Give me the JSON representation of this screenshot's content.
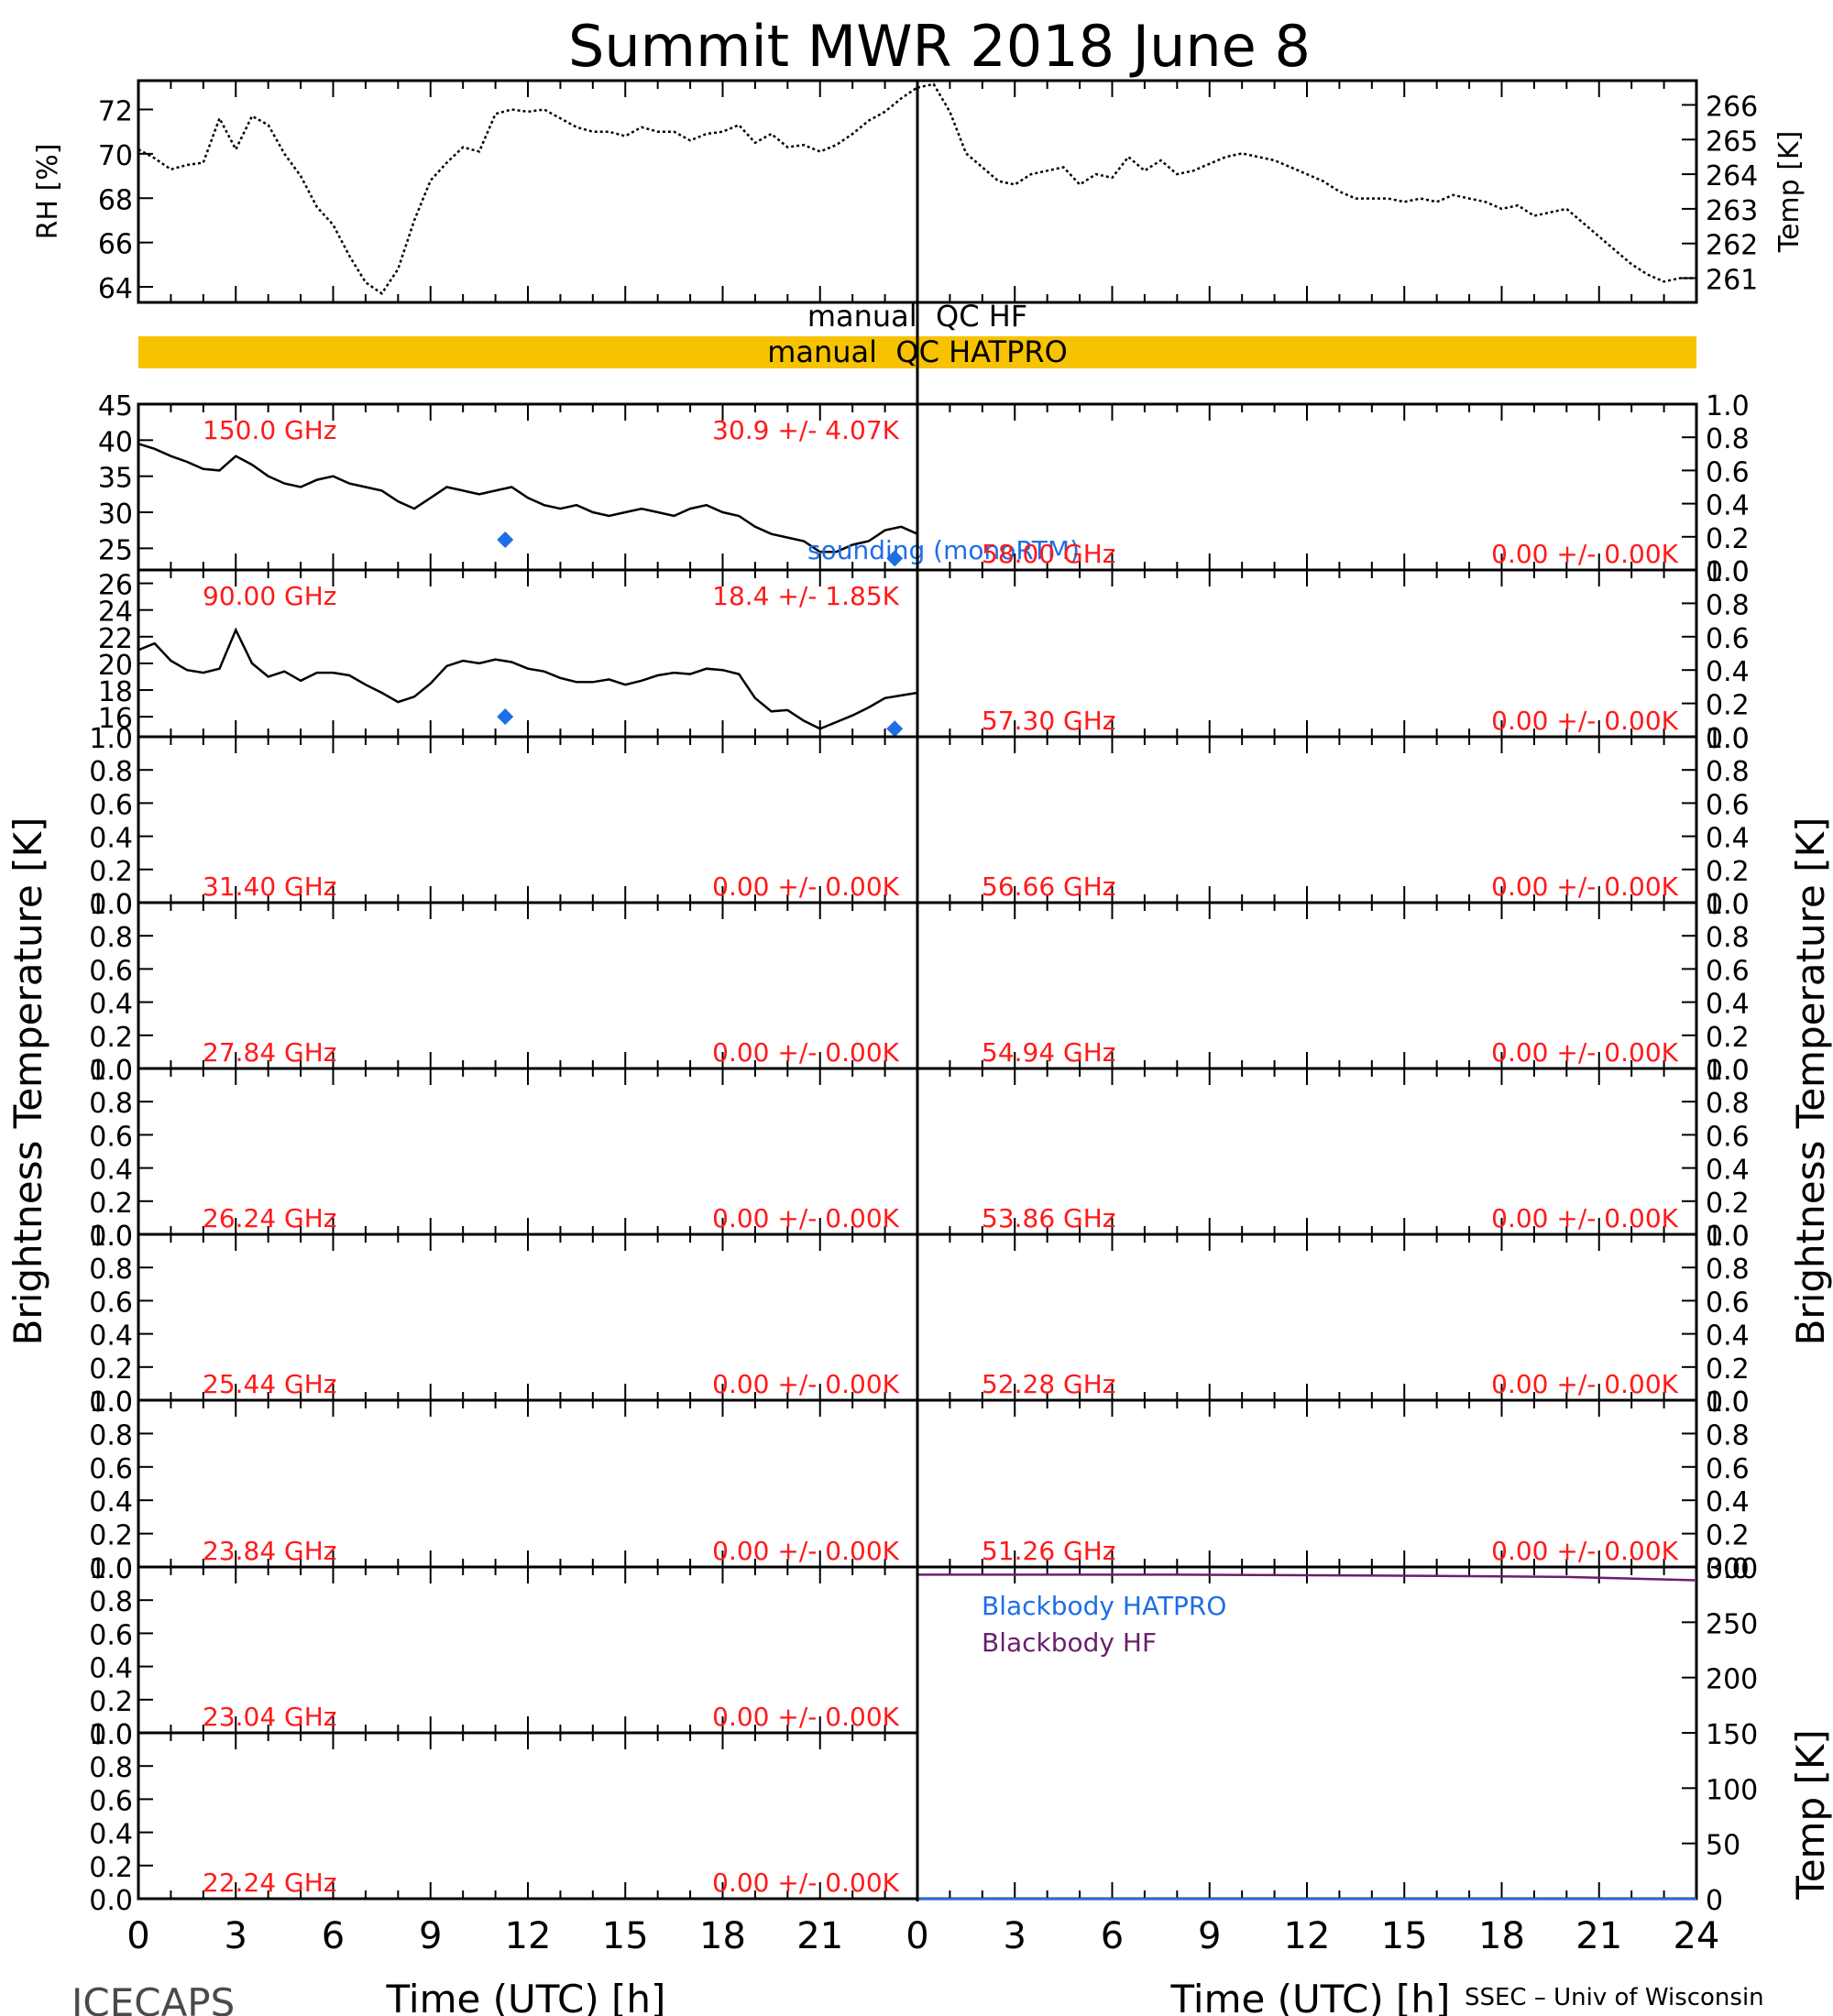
{
  "title": "Summit MWR 2018 June  8",
  "footer": {
    "left": "ICECAPS",
    "right": "SSEC – Univ of Wisconsin"
  },
  "qc": {
    "hf_label": "manual  QC HF",
    "hatpro_label": "manual  QC HATPRO",
    "hatpro_flag_color": "#F7C200"
  },
  "colors": {
    "data": "#000000",
    "freq_label": "#FF1A1A",
    "sounding": "#1E6EE6",
    "bb_hatpro": "#1E6EE6",
    "bb_hf": "#6B1F6B"
  },
  "chart_data": [
    {
      "type": "line",
      "panel": "met-rh",
      "ylabel": "RH [%]",
      "ylim": [
        63.3,
        73.3
      ],
      "yticks": [
        "64",
        "66",
        "68",
        "70",
        "72"
      ],
      "x": [
        0.0,
        0.5,
        1.0,
        1.5,
        2.0,
        2.5,
        3.0,
        3.5,
        4.0,
        4.5,
        5.0,
        5.5,
        6.0,
        6.5,
        7.0,
        7.5,
        8.0,
        8.5,
        9.0,
        9.5,
        10.0,
        10.5,
        11.0,
        11.5,
        12.0,
        12.5,
        13.0,
        13.5,
        14.0,
        14.5,
        15.0,
        15.5,
        16.0,
        16.5,
        17.0,
        17.5,
        18.0,
        18.5,
        19.0,
        19.5,
        20.0,
        20.5,
        21.0,
        21.5,
        22.0,
        22.5,
        23.0,
        23.5,
        24.0
      ],
      "y": [
        70.2,
        69.8,
        69.3,
        69.5,
        69.6,
        71.6,
        70.2,
        71.7,
        71.3,
        70.0,
        69.0,
        67.6,
        66.8,
        65.4,
        64.2,
        63.7,
        64.8,
        67.0,
        68.8,
        69.6,
        70.3,
        70.1,
        71.8,
        72.0,
        71.9,
        72.0,
        71.6,
        71.2,
        71.0,
        71.0,
        70.8,
        71.2,
        71.0,
        71.0,
        70.6,
        70.9,
        71.0,
        71.3,
        70.5,
        70.9,
        70.3,
        70.4,
        70.1,
        70.4,
        70.9,
        71.5,
        71.9,
        72.5,
        73.0
      ],
      "xlim": [
        0,
        24
      ]
    },
    {
      "type": "line",
      "panel": "met-temp",
      "ylabel": "Temp [K]",
      "ylim": [
        260.3,
        266.7
      ],
      "yticks": [
        "261",
        "262",
        "263",
        "264",
        "265",
        "266"
      ],
      "x": [
        0.0,
        0.5,
        1.0,
        1.5,
        2.0,
        2.5,
        3.0,
        3.5,
        4.0,
        4.5,
        5.0,
        5.5,
        6.0,
        6.5,
        7.0,
        7.5,
        8.0,
        8.5,
        9.0,
        9.5,
        10.0,
        10.5,
        11.0,
        11.5,
        12.0,
        12.5,
        13.0,
        13.5,
        14.0,
        14.5,
        15.0,
        15.5,
        16.0,
        16.5,
        17.0,
        17.5,
        18.0,
        18.5,
        19.0,
        19.5,
        20.0,
        20.5,
        21.0,
        21.5,
        22.0,
        22.5,
        23.0,
        23.5,
        24.0
      ],
      "y": [
        266.5,
        266.6,
        265.8,
        264.6,
        264.2,
        263.8,
        263.7,
        264.0,
        264.1,
        264.2,
        263.7,
        264.0,
        263.9,
        264.5,
        264.1,
        264.4,
        264.0,
        264.1,
        264.3,
        264.5,
        264.6,
        264.5,
        264.4,
        264.2,
        264.0,
        263.8,
        263.5,
        263.3,
        263.3,
        263.3,
        263.2,
        263.3,
        263.2,
        263.4,
        263.3,
        263.2,
        263.0,
        263.1,
        262.8,
        262.9,
        263.0,
        262.6,
        262.2,
        261.8,
        261.4,
        261.1,
        260.9,
        261.0,
        261.0
      ],
      "xlim": [
        0,
        24
      ]
    },
    {
      "type": "line",
      "panel": "150.0",
      "freq_label": "150.0 GHz",
      "stats_label": "30.9 +/-  4.07K",
      "ylim": [
        22.0,
        45.0
      ],
      "yticks": [
        "25",
        "30",
        "35",
        "40",
        "45"
      ],
      "x": [
        0.0,
        0.5,
        1.0,
        1.5,
        2.0,
        2.5,
        3.0,
        3.5,
        4.0,
        4.5,
        5.0,
        5.5,
        6.0,
        6.5,
        7.0,
        7.5,
        8.0,
        8.5,
        9.0,
        9.5,
        10.0,
        10.5,
        11.0,
        11.5,
        12.0,
        12.5,
        13.0,
        13.5,
        14.0,
        14.5,
        15.0,
        15.5,
        16.0,
        16.5,
        17.0,
        17.5,
        18.0,
        18.5,
        19.0,
        19.5,
        20.0,
        20.5,
        21.0,
        21.5,
        22.0,
        22.5,
        23.0,
        23.5,
        24.0
      ],
      "y": [
        39.5,
        38.8,
        37.8,
        37.0,
        36.0,
        35.8,
        37.8,
        36.6,
        35.0,
        34.0,
        33.5,
        34.5,
        35.0,
        34.0,
        33.5,
        33.0,
        31.5,
        30.5,
        32.0,
        33.5,
        33.0,
        32.5,
        33.0,
        33.5,
        32.0,
        31.0,
        30.5,
        31.0,
        30.0,
        29.5,
        30.0,
        30.5,
        30.0,
        29.5,
        30.5,
        31.0,
        30.0,
        29.5,
        28.0,
        27.0,
        26.5,
        26.0,
        24.5,
        24.5,
        25.5,
        26.0,
        27.5,
        28.0,
        27.0
      ],
      "sounding_points": [
        {
          "x": 11.3,
          "y": 26.2
        },
        {
          "x": 23.3,
          "y": 23.6
        }
      ],
      "sounding_label": "sounding (monoRTM)",
      "xlim": [
        0,
        24
      ]
    },
    {
      "type": "line",
      "panel": "90.00",
      "freq_label": "90.00 GHz",
      "stats_label": "18.4 +/-  1.85K",
      "ylim": [
        14.5,
        27.0
      ],
      "yticks": [
        "16",
        "18",
        "20",
        "22",
        "24",
        "26"
      ],
      "x": [
        0.0,
        0.5,
        1.0,
        1.5,
        2.0,
        2.5,
        3.0,
        3.5,
        4.0,
        4.5,
        5.0,
        5.5,
        6.0,
        6.5,
        7.0,
        7.5,
        8.0,
        8.5,
        9.0,
        9.5,
        10.0,
        10.5,
        11.0,
        11.5,
        12.0,
        12.5,
        13.0,
        13.5,
        14.0,
        14.5,
        15.0,
        15.5,
        16.0,
        16.5,
        17.0,
        17.5,
        18.0,
        18.5,
        19.0,
        19.5,
        20.0,
        20.5,
        21.0,
        21.5,
        22.0,
        22.5,
        23.0,
        23.5,
        24.0
      ],
      "y": [
        21.0,
        21.5,
        20.2,
        19.5,
        19.3,
        19.6,
        22.5,
        20.0,
        19.0,
        19.4,
        18.7,
        19.3,
        19.3,
        19.1,
        18.4,
        17.8,
        17.1,
        17.5,
        18.5,
        19.8,
        20.2,
        20.0,
        20.3,
        20.1,
        19.6,
        19.4,
        18.9,
        18.6,
        18.6,
        18.8,
        18.4,
        18.7,
        19.1,
        19.3,
        19.2,
        19.6,
        19.5,
        19.2,
        17.4,
        16.4,
        16.5,
        15.7,
        15.1,
        15.6,
        16.1,
        16.7,
        17.4,
        17.6,
        17.8
      ],
      "sounding_points": [
        {
          "x": 11.3,
          "y": 16.0
        },
        {
          "x": 23.3,
          "y": 15.1
        }
      ],
      "xlim": [
        0,
        24
      ]
    },
    {
      "type": "line",
      "panel": "31.40",
      "freq_label": "31.40 GHz",
      "stats_label": "0.00 +/-  0.00K",
      "ylim": [
        0,
        1
      ],
      "x": [],
      "y": []
    },
    {
      "type": "line",
      "panel": "27.84",
      "freq_label": "27.84 GHz",
      "stats_label": "0.00 +/-  0.00K",
      "ylim": [
        0,
        1
      ],
      "x": [],
      "y": []
    },
    {
      "type": "line",
      "panel": "26.24",
      "freq_label": "26.24 GHz",
      "stats_label": "0.00 +/-  0.00K",
      "ylim": [
        0,
        1
      ],
      "x": [],
      "y": []
    },
    {
      "type": "line",
      "panel": "25.44",
      "freq_label": "25.44 GHz",
      "stats_label": "0.00 +/-  0.00K",
      "ylim": [
        0,
        1
      ],
      "x": [],
      "y": []
    },
    {
      "type": "line",
      "panel": "23.84",
      "freq_label": "23.84 GHz",
      "stats_label": "0.00 +/-  0.00K",
      "ylim": [
        0,
        1
      ],
      "x": [],
      "y": []
    },
    {
      "type": "line",
      "panel": "23.04",
      "freq_label": "23.04 GHz",
      "stats_label": "0.00 +/-  0.00K",
      "ylim": [
        0,
        1
      ],
      "x": [],
      "y": []
    },
    {
      "type": "line",
      "panel": "22.24",
      "freq_label": "22.24 GHz",
      "stats_label": "0.00 +/-  0.00K",
      "ylim": [
        0,
        1
      ],
      "x": [],
      "y": []
    },
    {
      "type": "line",
      "panel": "58.00",
      "freq_label": "58.00 GHz",
      "stats_label": "0.00 +/-  0.00K",
      "ylim": [
        0,
        1
      ],
      "x": [],
      "y": []
    },
    {
      "type": "line",
      "panel": "57.30",
      "freq_label": "57.30 GHz",
      "stats_label": "0.00 +/-  0.00K",
      "ylim": [
        0,
        1
      ],
      "x": [],
      "y": []
    },
    {
      "type": "line",
      "panel": "56.66",
      "freq_label": "56.66 GHz",
      "stats_label": "0.00 +/-  0.00K",
      "ylim": [
        0,
        1
      ],
      "x": [],
      "y": []
    },
    {
      "type": "line",
      "panel": "54.94",
      "freq_label": "54.94 GHz",
      "stats_label": "0.00 +/-  0.00K",
      "ylim": [
        0,
        1
      ],
      "x": [],
      "y": []
    },
    {
      "type": "line",
      "panel": "53.86",
      "freq_label": "53.86 GHz",
      "stats_label": "0.00 +/-  0.00K",
      "ylim": [
        0,
        1
      ],
      "x": [],
      "y": []
    },
    {
      "type": "line",
      "panel": "52.28",
      "freq_label": "52.28 GHz",
      "stats_label": "0.00 +/-  0.00K",
      "ylim": [
        0,
        1
      ],
      "x": [],
      "y": []
    },
    {
      "type": "line",
      "panel": "51.26",
      "freq_label": "51.26 GHz",
      "stats_label": "0.00 +/-  0.00K",
      "ylim": [
        0,
        1
      ],
      "x": [],
      "y": []
    },
    {
      "type": "line",
      "panel": "blackbody",
      "ylabel": "Temp [K]",
      "ylim": [
        0,
        300
      ],
      "yticks": [
        "0",
        "50",
        "100",
        "150",
        "200",
        "250",
        "300"
      ],
      "series": [
        {
          "name": "Blackbody HATPRO",
          "x": [
            0,
            24
          ],
          "y": [
            0,
            0
          ]
        },
        {
          "name": "Blackbody HF",
          "x": [
            0,
            4,
            8,
            12,
            16,
            20,
            24
          ],
          "y": [
            293,
            293,
            293,
            292.5,
            292,
            291,
            288
          ]
        }
      ],
      "xlim": [
        0,
        24
      ]
    }
  ],
  "axes": {
    "bt_label": "Brightness Temperature [K]",
    "unit_ticks": [
      "0.0",
      "0.2",
      "0.4",
      "0.6",
      "0.8",
      "1.0"
    ],
    "x_ticks": [
      "0",
      "3",
      "6",
      "9",
      "12",
      "15",
      "18",
      "21"
    ],
    "x_ticks_right": [
      "0",
      "3",
      "6",
      "9",
      "12",
      "15",
      "18",
      "21",
      "24"
    ],
    "x_label": "Time (UTC) [h]"
  }
}
